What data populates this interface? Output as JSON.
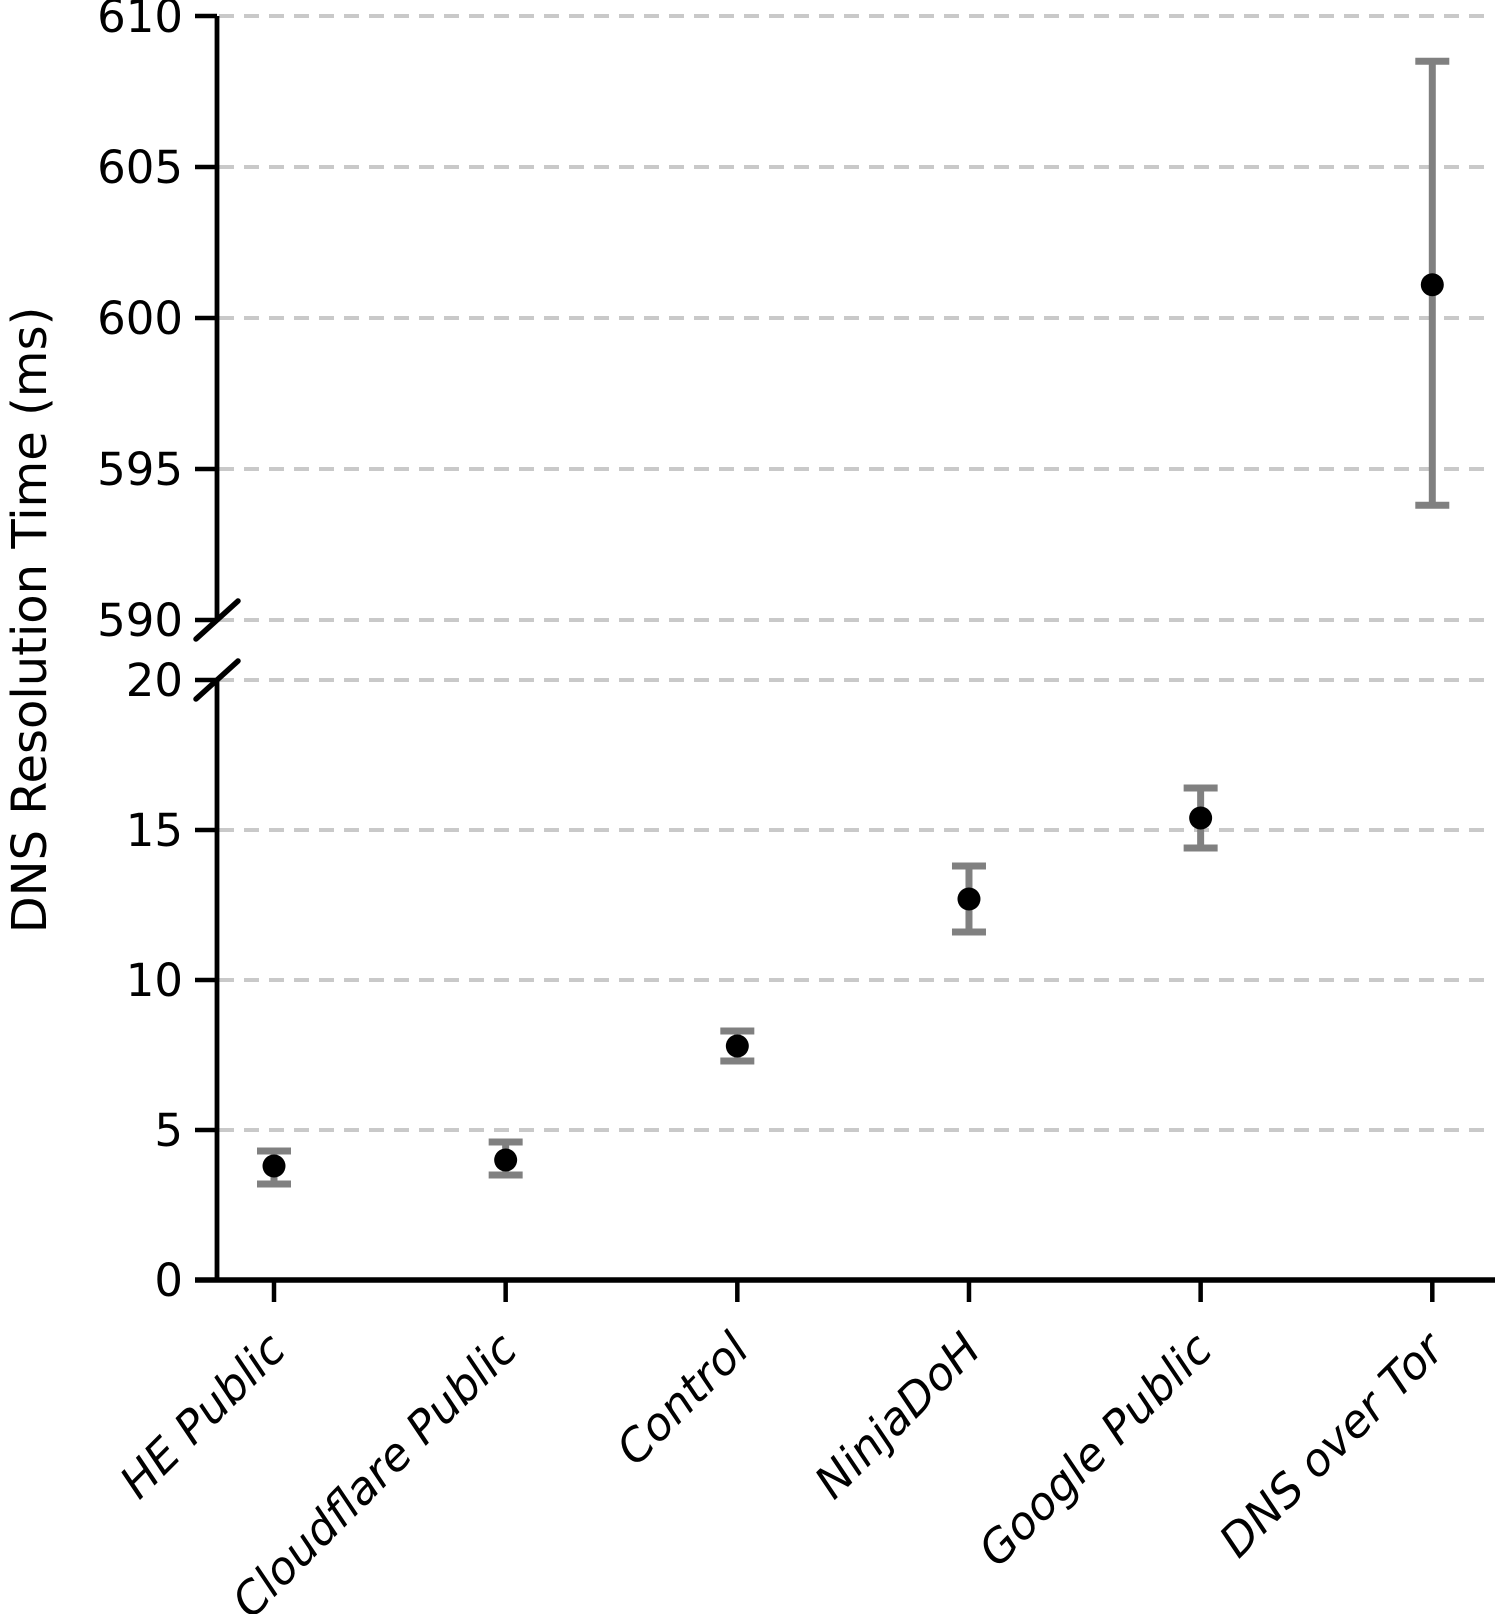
{
  "chart_data": {
    "type": "scatter",
    "title": "",
    "xlabel": "",
    "ylabel": "DNS Resolution Time (ms)",
    "categories": [
      "HE Public",
      "Cloudflare Public",
      "Control",
      "NinjaDoH",
      "Google Public",
      "DNS over Tor"
    ],
    "series": [
      {
        "name": "DNS resolution time (mean with error bars)",
        "values": [
          3.8,
          4.0,
          7.8,
          12.7,
          15.4,
          601.1
        ],
        "error_low": [
          3.2,
          3.5,
          7.3,
          11.6,
          14.4,
          593.8
        ],
        "error_high": [
          4.3,
          4.6,
          8.3,
          13.8,
          16.4,
          608.5
        ]
      }
    ],
    "broken_axis": {
      "bottom_range": [
        0,
        20
      ],
      "top_range": [
        590,
        610
      ],
      "bottom_ticks": [
        0,
        5,
        10,
        15,
        20
      ],
      "top_ticks": [
        590,
        595,
        600,
        605,
        610
      ]
    },
    "grid": "horizontal dashed",
    "legend": "none",
    "marker_color": "#000000",
    "errorbar_color": "#808080",
    "grid_color": "#c9c9c9",
    "axis_color": "#000000"
  }
}
